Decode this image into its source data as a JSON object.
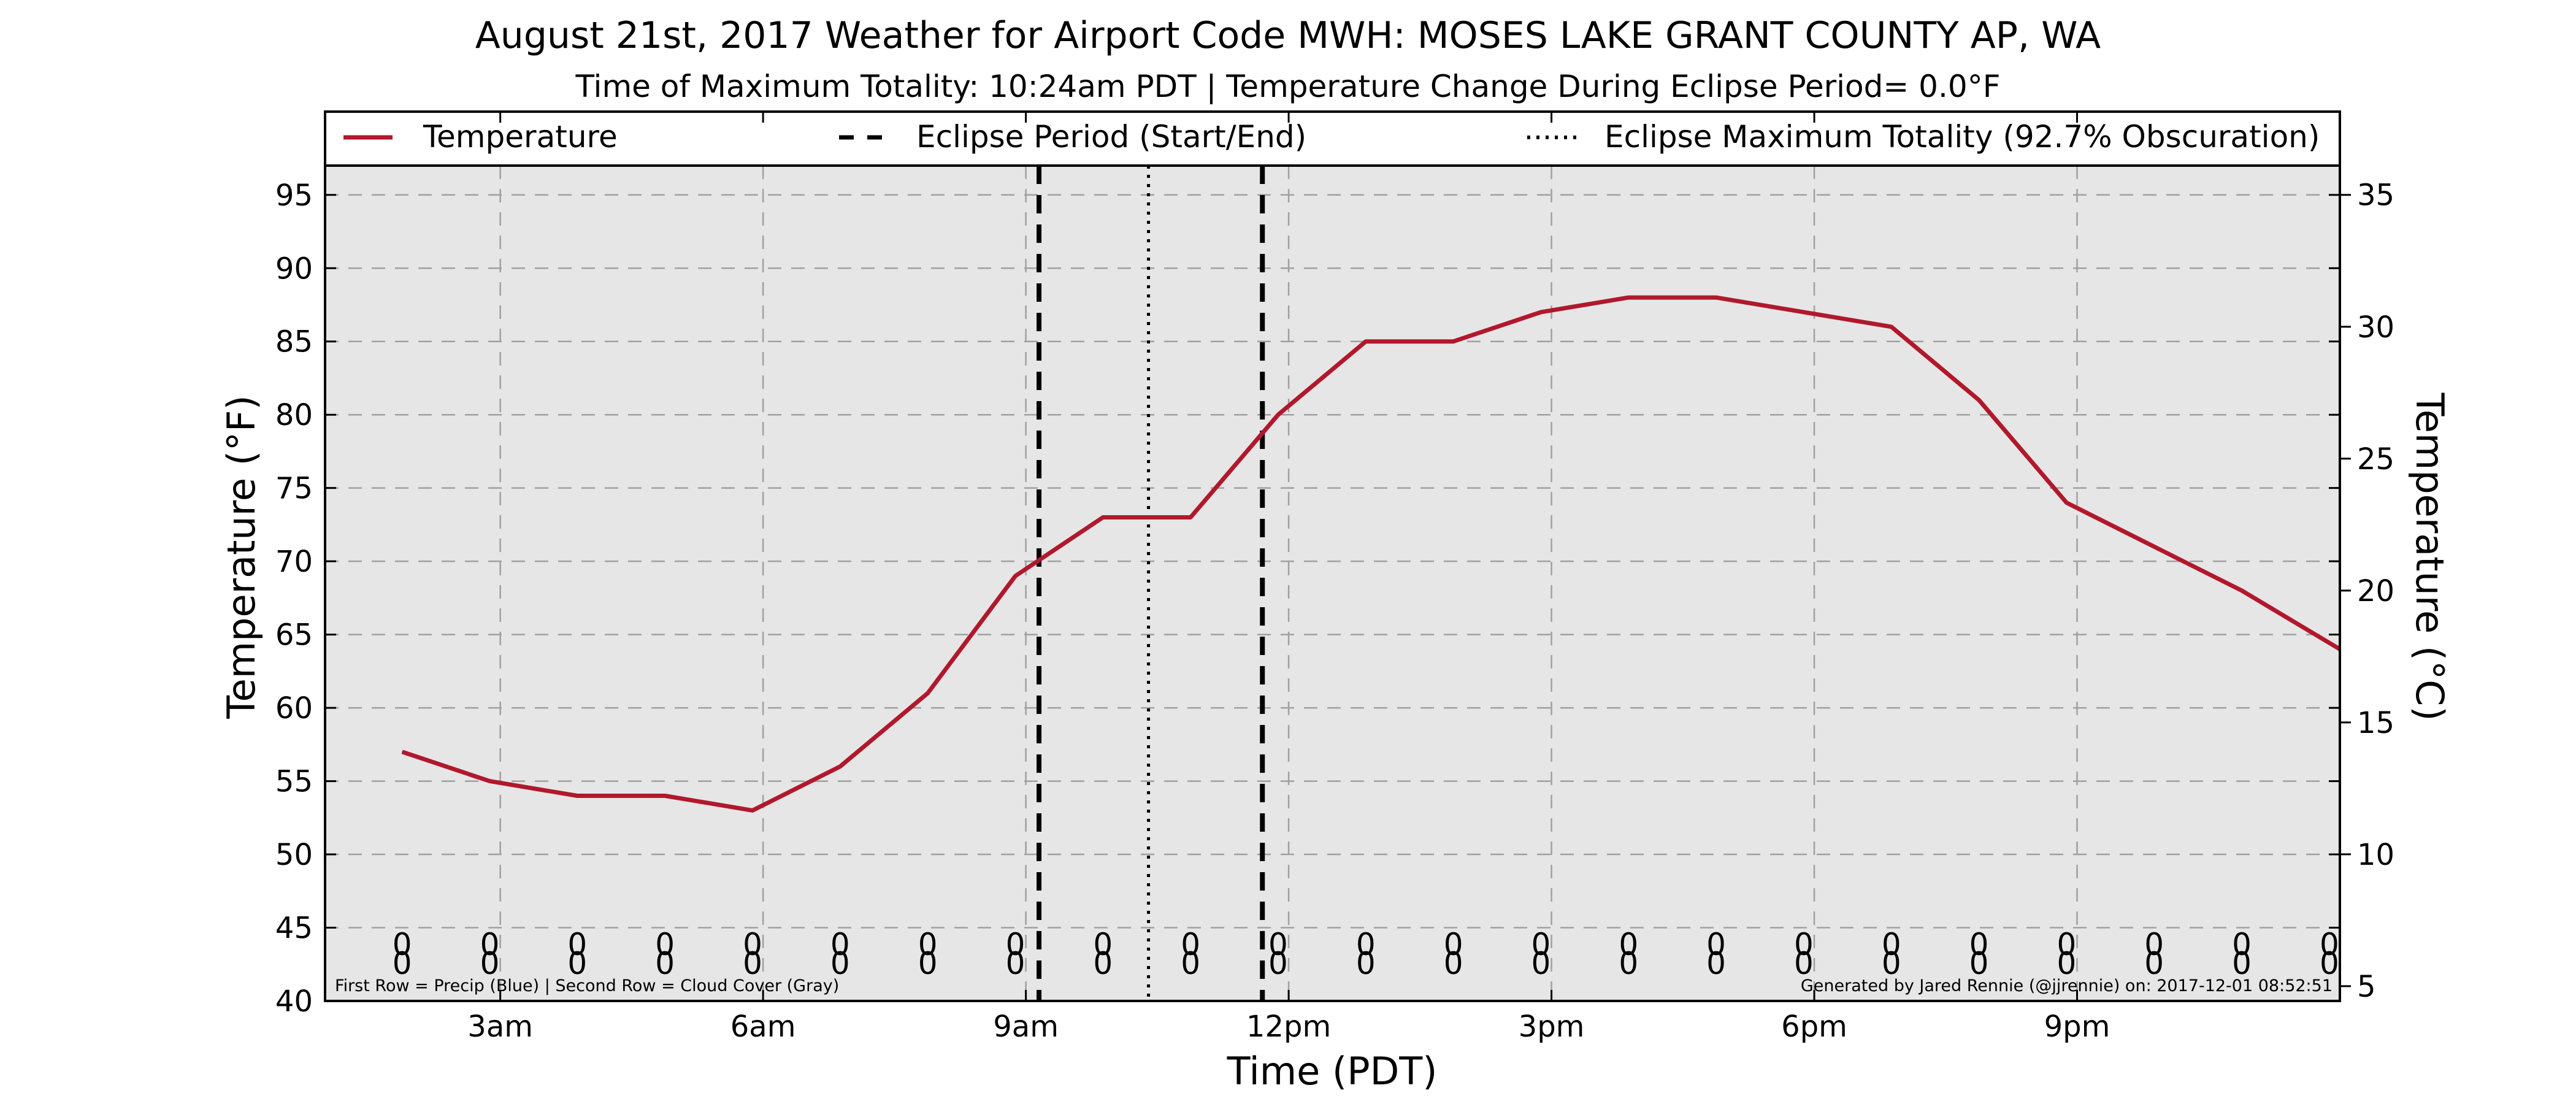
{
  "chart_data": {
    "type": "line",
    "title": "August 21st, 2017 Weather for Airport Code MWH: MOSES LAKE GRANT COUNTY AP, WA",
    "subtitle": "Time of Maximum Totality: 10:24am PDT | Temperature Change During Eclipse Period= 0.0°F",
    "xlabel": "Time (PDT)",
    "ylabel": "Temperature (°F)",
    "y2label": "Temperature (°C)",
    "xlim": [
      1.0,
      24.0
    ],
    "ylim": [
      40,
      97
    ],
    "y2lim": [
      4.44,
      36.11
    ],
    "x_ticks": [
      {
        "x": 3,
        "label": "3am"
      },
      {
        "x": 6,
        "label": "6am"
      },
      {
        "x": 9,
        "label": "9am"
      },
      {
        "x": 12,
        "label": "12pm"
      },
      {
        "x": 15,
        "label": "3pm"
      },
      {
        "x": 18,
        "label": "6pm"
      },
      {
        "x": 21,
        "label": "9pm"
      }
    ],
    "y_ticks": [
      40,
      45,
      50,
      55,
      60,
      65,
      70,
      75,
      80,
      85,
      90,
      95
    ],
    "y2_ticks": [
      5,
      10,
      15,
      20,
      25,
      30,
      35
    ],
    "grid": true,
    "legend_placement": "top",
    "series": [
      {
        "name": "Temperature",
        "color": "#b2182b",
        "x": [
          1.88,
          2.88,
          3.88,
          4.88,
          5.88,
          6.88,
          7.88,
          8.88,
          9.88,
          10.88,
          11.88,
          12.88,
          13.88,
          14.88,
          15.88,
          16.88,
          17.88,
          18.88,
          19.88,
          20.88,
          21.88,
          22.88,
          24.0
        ],
        "values": [
          57,
          55,
          54,
          54,
          53,
          56,
          61,
          69,
          73,
          73,
          80,
          85,
          85,
          87,
          88,
          88,
          87,
          86,
          81,
          74,
          71,
          68,
          64
        ]
      }
    ],
    "eclipse_period": [
      9.15,
      11.7
    ],
    "eclipse_max": 10.4,
    "legend": [
      {
        "label": "Temperature",
        "style": "solid"
      },
      {
        "label": "Eclipse Period (Start/End)",
        "style": "dashed"
      },
      {
        "label": "Eclipse Maximum Totality (92.7% Obscuration)",
        "style": "dotted"
      }
    ],
    "symbols": {
      "x": [
        1.88,
        2.88,
        3.88,
        4.88,
        5.88,
        6.88,
        7.88,
        8.88,
        9.88,
        10.88,
        11.88,
        12.88,
        13.88,
        14.88,
        15.88,
        16.88,
        17.88,
        18.88,
        19.88,
        20.88,
        21.88,
        22.88,
        23.88
      ],
      "row1": "0",
      "row2": "0"
    },
    "note_left": "First Row = Precip (Blue) | Second Row = Cloud Cover (Gray)",
    "note_right": "Generated by Jared Rennie (@jjrennie) on: 2017-12-01 08:52:51"
  },
  "colors": {
    "plot_background": "#e6e6e6",
    "line": "#b2182b",
    "grid": "#a0a0a0"
  }
}
